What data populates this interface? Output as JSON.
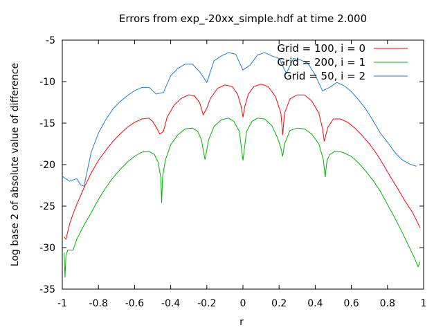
{
  "chart_data": {
    "type": "line",
    "title": "Errors from exp_-20xx_simple.hdf at time 2.000",
    "xlabel": "r",
    "ylabel": "Log base 2 of absolute value of difference",
    "xlim": [
      -1,
      1
    ],
    "ylim": [
      -35,
      -5
    ],
    "xticks": [
      "-1",
      "-0.8",
      "-0.6",
      "-0.4",
      "-0.2",
      "0",
      "0.2",
      "0.4",
      "0.6",
      "0.8",
      "1"
    ],
    "yticks": [
      "-5",
      "-10",
      "-15",
      "-20",
      "-25",
      "-30",
      "-35"
    ],
    "legend_position": "top-right",
    "grid": false,
    "series": [
      {
        "name": "Grid = 100, i = 0",
        "color": "#ff0000",
        "points": [
          [
            -0.99,
            -28.7
          ],
          [
            -0.98,
            -29.0
          ],
          [
            -0.96,
            -27.2
          ],
          [
            -0.94,
            -25.9
          ],
          [
            -0.92,
            -24.8
          ],
          [
            -0.88,
            -22.8
          ],
          [
            -0.84,
            -21.0
          ],
          [
            -0.8,
            -19.5
          ],
          [
            -0.76,
            -18.3
          ],
          [
            -0.72,
            -17.2
          ],
          [
            -0.68,
            -16.3
          ],
          [
            -0.64,
            -15.5
          ],
          [
            -0.6,
            -14.9
          ],
          [
            -0.56,
            -14.5
          ],
          [
            -0.52,
            -14.4
          ],
          [
            -0.5,
            -14.8
          ],
          [
            -0.48,
            -15.5
          ],
          [
            -0.46,
            -16.3
          ],
          [
            -0.44,
            -16.0
          ],
          [
            -0.42,
            -14.3
          ],
          [
            -0.38,
            -12.8
          ],
          [
            -0.34,
            -12.0
          ],
          [
            -0.3,
            -11.6
          ],
          [
            -0.27,
            -11.7
          ],
          [
            -0.24,
            -12.5
          ],
          [
            -0.22,
            -14.0
          ],
          [
            -0.2,
            -13.2
          ],
          [
            -0.18,
            -12.0
          ],
          [
            -0.14,
            -10.8
          ],
          [
            -0.1,
            -10.4
          ],
          [
            -0.06,
            -10.6
          ],
          [
            -0.03,
            -11.5
          ],
          [
            -0.01,
            -13.0
          ],
          [
            0.0,
            -14.3
          ],
          [
            0.01,
            -13.0
          ],
          [
            0.03,
            -11.5
          ],
          [
            0.06,
            -10.6
          ],
          [
            0.1,
            -10.3
          ],
          [
            0.14,
            -10.6
          ],
          [
            0.18,
            -11.8
          ],
          [
            0.21,
            -13.8
          ],
          [
            0.22,
            -16.4
          ],
          [
            0.23,
            -13.8
          ],
          [
            0.26,
            -12.1
          ],
          [
            0.3,
            -11.6
          ],
          [
            0.34,
            -11.6
          ],
          [
            0.38,
            -12.3
          ],
          [
            0.42,
            -13.8
          ],
          [
            0.44,
            -15.6
          ],
          [
            0.45,
            -17.2
          ],
          [
            0.47,
            -15.5
          ],
          [
            0.5,
            -14.5
          ],
          [
            0.54,
            -14.5
          ],
          [
            0.58,
            -14.9
          ],
          [
            0.62,
            -15.6
          ],
          [
            0.66,
            -16.5
          ],
          [
            0.7,
            -17.5
          ],
          [
            0.74,
            -18.7
          ],
          [
            0.78,
            -20.1
          ],
          [
            0.82,
            -21.6
          ],
          [
            0.86,
            -23.0
          ],
          [
            0.9,
            -24.5
          ],
          [
            0.94,
            -25.8
          ],
          [
            0.98,
            -27.6
          ]
        ]
      },
      {
        "name": "Grid = 200, i = 1",
        "color": "#00b000",
        "points": [
          [
            -0.99,
            -30.6
          ],
          [
            -0.985,
            -33.6
          ],
          [
            -0.98,
            -31.0
          ],
          [
            -0.97,
            -30.3
          ],
          [
            -0.94,
            -30.3
          ],
          [
            -0.92,
            -29.0
          ],
          [
            -0.88,
            -27.3
          ],
          [
            -0.84,
            -25.8
          ],
          [
            -0.8,
            -24.2
          ],
          [
            -0.76,
            -22.8
          ],
          [
            -0.72,
            -21.6
          ],
          [
            -0.68,
            -20.6
          ],
          [
            -0.64,
            -19.7
          ],
          [
            -0.6,
            -19.0
          ],
          [
            -0.56,
            -18.5
          ],
          [
            -0.52,
            -18.4
          ],
          [
            -0.49,
            -18.8
          ],
          [
            -0.47,
            -19.7
          ],
          [
            -0.455,
            -21.5
          ],
          [
            -0.45,
            -24.6
          ],
          [
            -0.445,
            -21.5
          ],
          [
            -0.43,
            -19.5
          ],
          [
            -0.4,
            -17.6
          ],
          [
            -0.36,
            -16.4
          ],
          [
            -0.32,
            -15.7
          ],
          [
            -0.28,
            -15.6
          ],
          [
            -0.25,
            -16.0
          ],
          [
            -0.23,
            -17.0
          ],
          [
            -0.21,
            -19.4
          ],
          [
            -0.19,
            -17.0
          ],
          [
            -0.16,
            -15.4
          ],
          [
            -0.12,
            -14.6
          ],
          [
            -0.08,
            -14.4
          ],
          [
            -0.05,
            -14.8
          ],
          [
            -0.02,
            -16.0
          ],
          [
            0.0,
            -19.5
          ],
          [
            0.02,
            -16.0
          ],
          [
            0.05,
            -14.8
          ],
          [
            0.08,
            -14.4
          ],
          [
            0.12,
            -14.5
          ],
          [
            0.16,
            -15.3
          ],
          [
            0.19,
            -16.7
          ],
          [
            0.21,
            -18.0
          ],
          [
            0.22,
            -19.0
          ],
          [
            0.23,
            -17.5
          ],
          [
            0.26,
            -15.9
          ],
          [
            0.3,
            -15.6
          ],
          [
            0.34,
            -15.7
          ],
          [
            0.38,
            -16.3
          ],
          [
            0.42,
            -17.5
          ],
          [
            0.445,
            -19.4
          ],
          [
            0.455,
            -21.5
          ],
          [
            0.465,
            -19.5
          ],
          [
            0.48,
            -18.8
          ],
          [
            0.51,
            -18.4
          ],
          [
            0.55,
            -18.5
          ],
          [
            0.6,
            -19.0
          ],
          [
            0.64,
            -19.8
          ],
          [
            0.68,
            -20.8
          ],
          [
            0.72,
            -21.9
          ],
          [
            0.76,
            -23.2
          ],
          [
            0.8,
            -24.8
          ],
          [
            0.84,
            -26.4
          ],
          [
            0.88,
            -28.1
          ],
          [
            0.92,
            -29.9
          ],
          [
            0.95,
            -31.3
          ],
          [
            0.97,
            -32.3
          ],
          [
            0.98,
            -31.7
          ]
        ]
      },
      {
        "name": "Grid = 50, i = 2",
        "color": "#1f7ad9",
        "points": [
          [
            -1.0,
            -21.4
          ],
          [
            -0.96,
            -22.0
          ],
          [
            -0.92,
            -21.7
          ],
          [
            -0.9,
            -22.4
          ],
          [
            -0.88,
            -22.6
          ],
          [
            -0.84,
            -18.5
          ],
          [
            -0.8,
            -16.2
          ],
          [
            -0.76,
            -14.6
          ],
          [
            -0.72,
            -13.3
          ],
          [
            -0.68,
            -12.4
          ],
          [
            -0.64,
            -11.7
          ],
          [
            -0.6,
            -11.1
          ],
          [
            -0.56,
            -10.7
          ],
          [
            -0.52,
            -10.7
          ],
          [
            -0.48,
            -11.5
          ],
          [
            -0.44,
            -11.3
          ],
          [
            -0.4,
            -9.3
          ],
          [
            -0.36,
            -8.4
          ],
          [
            -0.32,
            -7.9
          ],
          [
            -0.28,
            -7.9
          ],
          [
            -0.24,
            -8.8
          ],
          [
            -0.2,
            -10.1
          ],
          [
            -0.16,
            -7.5
          ],
          [
            -0.12,
            -6.9
          ],
          [
            -0.08,
            -6.5
          ],
          [
            -0.04,
            -6.7
          ],
          [
            0.0,
            -8.6
          ],
          [
            0.04,
            -8.0
          ],
          [
            0.08,
            -6.8
          ],
          [
            0.12,
            -6.5
          ],
          [
            0.16,
            -6.9
          ],
          [
            0.2,
            -7.2
          ],
          [
            0.24,
            -9.0
          ],
          [
            0.28,
            -7.2
          ],
          [
            0.32,
            -7.4
          ],
          [
            0.36,
            -7.8
          ],
          [
            0.4,
            -9.2
          ],
          [
            0.44,
            -11.1
          ],
          [
            0.48,
            -10.7
          ],
          [
            0.52,
            -10.1
          ],
          [
            0.56,
            -10.5
          ],
          [
            0.6,
            -11.2
          ],
          [
            0.64,
            -12.2
          ],
          [
            0.68,
            -13.3
          ],
          [
            0.72,
            -14.7
          ],
          [
            0.76,
            -16.2
          ],
          [
            0.8,
            -17.3
          ],
          [
            0.84,
            -18.5
          ],
          [
            0.88,
            -19.4
          ],
          [
            0.92,
            -19.9
          ],
          [
            0.96,
            -20.2
          ]
        ]
      }
    ]
  }
}
